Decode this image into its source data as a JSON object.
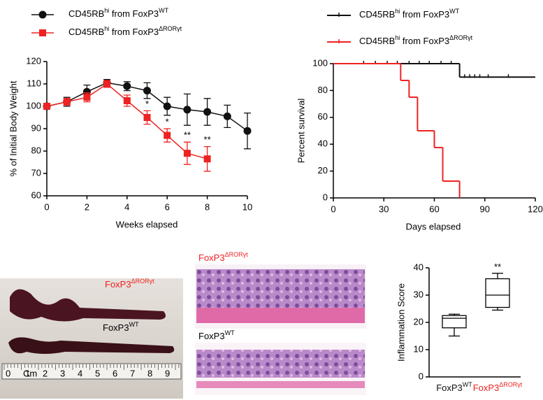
{
  "chart_data": [
    {
      "type": "line",
      "xlabel": "Weeks elapsed",
      "ylabel": "% of Initial Body Weight",
      "xlim": [
        0,
        10
      ],
      "xticks": [
        0,
        2,
        4,
        6,
        8,
        10
      ],
      "ylim": [
        60,
        120
      ],
      "yticks": [
        60,
        70,
        80,
        90,
        100,
        110,
        120
      ],
      "series": [
        {
          "name": [
            "CD45RB",
            "hi",
            " from FoxP3",
            "WT"
          ],
          "color": "#111111",
          "marker": "circle",
          "x": [
            0,
            1,
            2,
            3,
            4,
            5,
            6,
            7,
            8,
            9,
            10
          ],
          "values": [
            100,
            102,
            106.5,
            110.5,
            109,
            107,
            100,
            98.5,
            97.5,
            95.5,
            89
          ],
          "errors": [
            1,
            2,
            3,
            1.5,
            2,
            3.5,
            4,
            7,
            6,
            5,
            8
          ]
        },
        {
          "name": [
            "CD45RB",
            "hi",
            " from FoxP3",
            "ΔRORγt"
          ],
          "color": "#ee2222",
          "marker": "square",
          "x": [
            0,
            1,
            2,
            3,
            4,
            5,
            6,
            7,
            8
          ],
          "values": [
            100,
            102,
            104,
            110,
            102.5,
            95,
            87,
            79,
            76.5
          ],
          "errors": [
            1,
            1.5,
            2,
            1.5,
            2.5,
            3,
            3,
            5,
            5.5
          ]
        }
      ],
      "annotations": [
        {
          "x": 5,
          "text": "*"
        },
        {
          "x": 6,
          "text": "*"
        },
        {
          "x": 7,
          "text": "**"
        },
        {
          "x": 8,
          "text": "**"
        }
      ]
    },
    {
      "type": "survival",
      "xlabel": "Days elapsed",
      "ylabel": "Percent survival",
      "xlim": [
        0,
        120
      ],
      "xticks": [
        0,
        30,
        60,
        90,
        120
      ],
      "ylim": [
        0,
        100
      ],
      "yticks": [
        0,
        20,
        40,
        60,
        80,
        100
      ],
      "series": [
        {
          "name": [
            "CD45RB",
            "hi",
            " from FoxP3",
            "WT"
          ],
          "color": "#111111",
          "x": [
            0,
            75
          ],
          "values": [
            100,
            90
          ],
          "censored": [
            18,
            25,
            32,
            38,
            45,
            51,
            57,
            64,
            70,
            78,
            81,
            84,
            87,
            92,
            104
          ]
        },
        {
          "name": [
            "CD45RB",
            "hi",
            " from FoxP3",
            "ΔRORγt"
          ],
          "color": "#ee2222",
          "x": [
            0,
            40,
            45,
            50,
            60,
            65,
            75
          ],
          "values": [
            100,
            87.5,
            75,
            50,
            37.5,
            12.5,
            0
          ],
          "censored": []
        }
      ]
    },
    {
      "type": "box",
      "ylabel": "Inflammation Score",
      "ylim": [
        0,
        40
      ],
      "yticks": [
        0,
        10,
        20,
        30,
        40
      ],
      "categories": [
        [
          "FoxP3",
          "WT"
        ],
        [
          "FoxP3",
          "ΔRORγt"
        ]
      ],
      "colors": [
        "#111111",
        "#ee2222"
      ],
      "boxes": [
        {
          "min": 15,
          "q1": 18,
          "median": 21.5,
          "q3": 22.5,
          "max": 23
        },
        {
          "min": 24.5,
          "q1": 25.5,
          "median": 30,
          "q3": 36,
          "max": 38
        }
      ],
      "annotations": [
        {
          "category": 1,
          "text": "**"
        }
      ]
    }
  ],
  "gross_photo": {
    "labels": [
      [
        "FoxP3",
        "ΔRORγt"
      ],
      [
        "FoxP3",
        "WT"
      ]
    ],
    "ruler": [
      "0",
      "Cm",
      "1",
      "2",
      "3",
      "4",
      "5",
      "6",
      "7",
      "8",
      "9"
    ]
  },
  "histology": {
    "labels": [
      [
        "FoxP3",
        "ΔRORγt"
      ],
      [
        "FoxP3",
        "WT"
      ]
    ]
  }
}
